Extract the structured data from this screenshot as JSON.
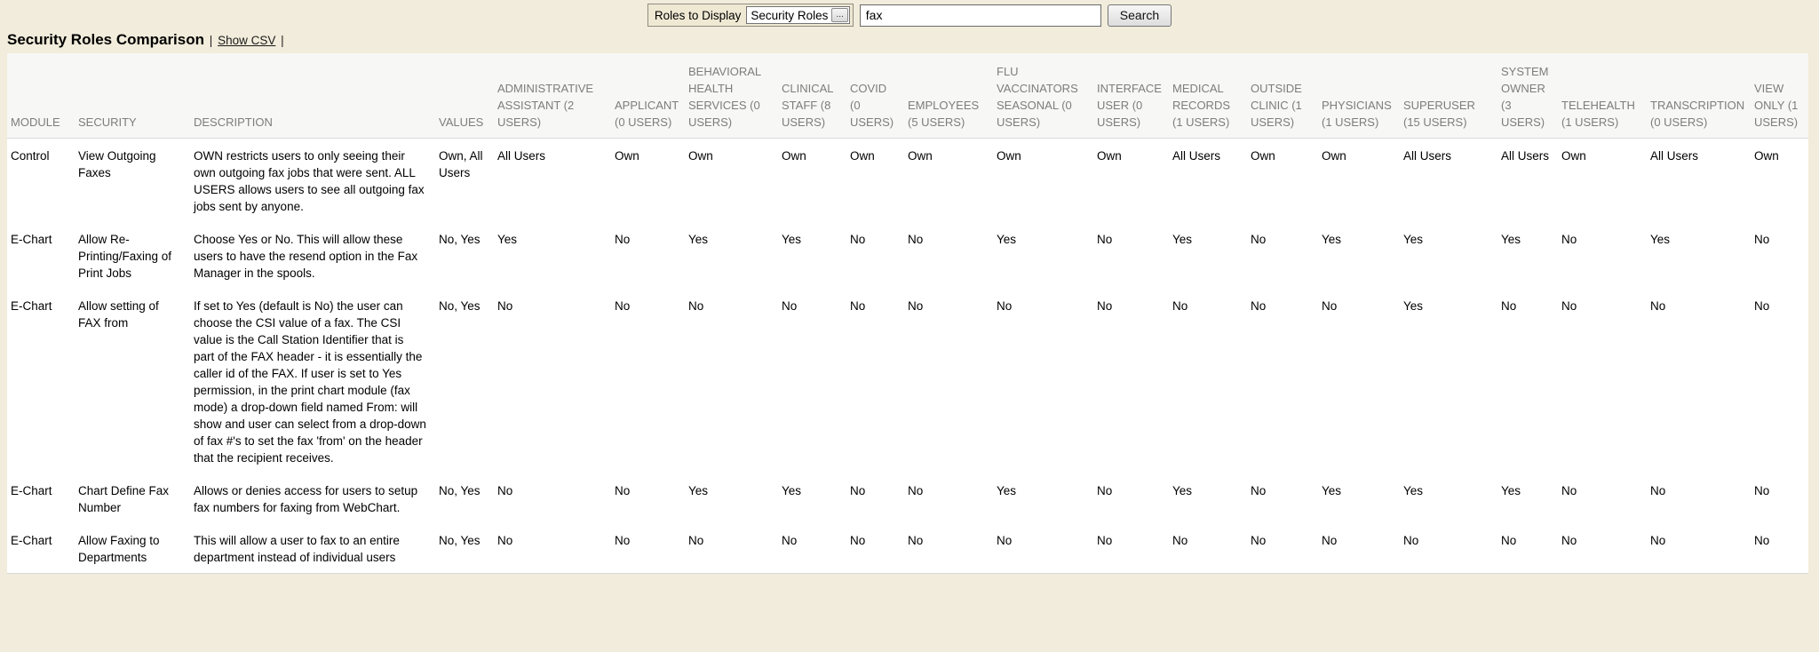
{
  "colors": {
    "page_bg": "#f1ecdb",
    "table_header_bg": "#f7f7f5",
    "table_header_text": "#7d7d7d",
    "table_body_bg": "#ffffff"
  },
  "toolbar": {
    "roles_label": "Roles to Display",
    "roles_value": "Security Roles",
    "roles_expand": "...",
    "search_value": "fax",
    "search_label": "Search"
  },
  "header": {
    "title": "Security Roles Comparison",
    "divider": "|",
    "csv_link": "Show CSV"
  },
  "table": {
    "columns": [
      {
        "id": "module",
        "label": "MODULE"
      },
      {
        "id": "security",
        "label": "SECURITY"
      },
      {
        "id": "description",
        "label": "DESCRIPTION"
      },
      {
        "id": "values",
        "label": "VALUES"
      },
      {
        "id": "administrative-assistant",
        "label": "ADMINISTRATIVE ASSISTANT (2 USERS)"
      },
      {
        "id": "applicant",
        "label": "APPLICANT (0 USERS)"
      },
      {
        "id": "behavioral-health-services",
        "label": "BEHAVIORAL HEALTH SERVICES (0 USERS)"
      },
      {
        "id": "clinical-staff",
        "label": "CLINICAL STAFF (8 USERS)"
      },
      {
        "id": "covid",
        "label": "COVID (0 USERS)"
      },
      {
        "id": "employees",
        "label": "EMPLOYEES (5 USERS)"
      },
      {
        "id": "flu-vaccinators-seasonal",
        "label": "FLU VACCINATORS SEASONAL (0 USERS)"
      },
      {
        "id": "interface-user",
        "label": "INTERFACE USER (0 USERS)"
      },
      {
        "id": "medical-records",
        "label": "MEDICAL RECORDS (1 USERS)"
      },
      {
        "id": "outside-clinic",
        "label": "OUTSIDE CLINIC (1 USERS)"
      },
      {
        "id": "physicians",
        "label": "PHYSICIANS (1 USERS)"
      },
      {
        "id": "superuser",
        "label": "SUPERUSER (15 USERS)"
      },
      {
        "id": "system-owner",
        "label": "SYSTEM OWNER (3 USERS)"
      },
      {
        "id": "telehealth",
        "label": "TELEHEALTH (1 USERS)"
      },
      {
        "id": "transcription",
        "label": "TRANSCRIPTION (0 USERS)"
      },
      {
        "id": "view-only",
        "label": "VIEW ONLY (1 USERS)"
      }
    ],
    "rows": [
      {
        "module": "Control",
        "security": "View Outgoing Faxes",
        "description": "OWN restricts users to only seeing their own outgoing fax jobs that were sent. ALL USERS allows users to see all outgoing fax jobs sent by anyone.",
        "values": "Own, All Users",
        "cells": [
          "All Users",
          "Own",
          "Own",
          "Own",
          "Own",
          "Own",
          "Own",
          "Own",
          "All Users",
          "Own",
          "Own",
          "All Users",
          "All Users",
          "Own",
          "All Users",
          "Own"
        ]
      },
      {
        "module": "E-Chart",
        "security": "Allow Re-Printing/Faxing of Print Jobs",
        "description": "Choose Yes or No. This will allow these users to have the resend option in the Fax Manager in the spools.",
        "values": "No, Yes",
        "cells": [
          "Yes",
          "No",
          "Yes",
          "Yes",
          "No",
          "No",
          "Yes",
          "No",
          "Yes",
          "No",
          "Yes",
          "Yes",
          "Yes",
          "No",
          "Yes",
          "No"
        ]
      },
      {
        "module": "E-Chart",
        "security": "Allow setting of FAX from",
        "description": "If set to Yes (default is No) the user can choose the CSI value of a fax. The CSI value is the Call Station Identifier that is part of the FAX header - it is essentially the caller id of the FAX. If user is set to Yes permission, in the print chart module (fax mode) a drop-down field named From: will show and user can select from a drop-down of fax #'s to set the fax 'from' on the header that the recipient receives.",
        "values": "No, Yes",
        "cells": [
          "No",
          "No",
          "No",
          "No",
          "No",
          "No",
          "No",
          "No",
          "No",
          "No",
          "No",
          "Yes",
          "No",
          "No",
          "No",
          "No"
        ]
      },
      {
        "module": "E-Chart",
        "security": "Chart Define Fax Number",
        "description": "Allows or denies access for users to setup fax numbers for faxing from WebChart.",
        "values": "No, Yes",
        "cells": [
          "No",
          "No",
          "Yes",
          "Yes",
          "No",
          "No",
          "Yes",
          "No",
          "Yes",
          "No",
          "Yes",
          "Yes",
          "Yes",
          "No",
          "No",
          "No"
        ]
      },
      {
        "module": "E-Chart",
        "security": "Allow Faxing to Departments",
        "description": "This will allow a user to fax to an entire department instead of individual users",
        "values": "No, Yes",
        "cells": [
          "No",
          "No",
          "No",
          "No",
          "No",
          "No",
          "No",
          "No",
          "No",
          "No",
          "No",
          "No",
          "No",
          "No",
          "No",
          "No"
        ]
      }
    ]
  }
}
